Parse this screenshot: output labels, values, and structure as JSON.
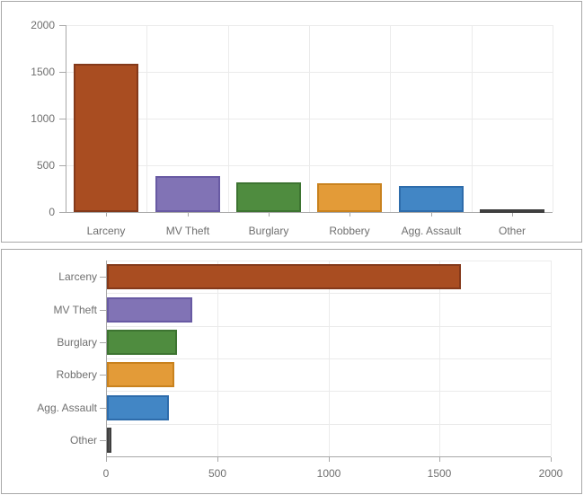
{
  "chart_data": [
    {
      "type": "bar",
      "orientation": "vertical",
      "title": "",
      "categories": [
        "Larceny",
        "MV Theft",
        "Burglary",
        "Robbery",
        "Agg. Assault",
        "Other"
      ],
      "values": [
        1590,
        385,
        315,
        305,
        280,
        20
      ],
      "xlabel": "",
      "ylabel": "",
      "ylim": [
        0,
        2000
      ],
      "yticks": [
        0,
        500,
        1000,
        1500,
        2000
      ],
      "grid": true,
      "legend": "none"
    },
    {
      "type": "bar",
      "orientation": "horizontal",
      "title": "",
      "categories": [
        "Larceny",
        "MV Theft",
        "Burglary",
        "Robbery",
        "Agg. Assault",
        "Other"
      ],
      "values": [
        1590,
        385,
        315,
        305,
        280,
        20
      ],
      "xlabel": "",
      "ylabel": "",
      "xlim": [
        0,
        2000
      ],
      "xticks": [
        0,
        500,
        1000,
        1500,
        2000
      ],
      "grid": true,
      "legend": "none"
    }
  ],
  "palette": {
    "bar_fills": [
      "#a94d21",
      "#8173b5",
      "#4f8c3f",
      "#e39b38",
      "#4286c5",
      "#5f5f5f"
    ],
    "bar_borders": [
      "#84391a",
      "#685aa3",
      "#3d7431",
      "#c9821e",
      "#2e6cab",
      "#3f3f3f"
    ],
    "gridline": "#ebebeb",
    "axis": "#a8a8a8",
    "tick_text": "#6f6f6f",
    "panel_border": "#a8a8a8",
    "background": "#ffffff"
  }
}
